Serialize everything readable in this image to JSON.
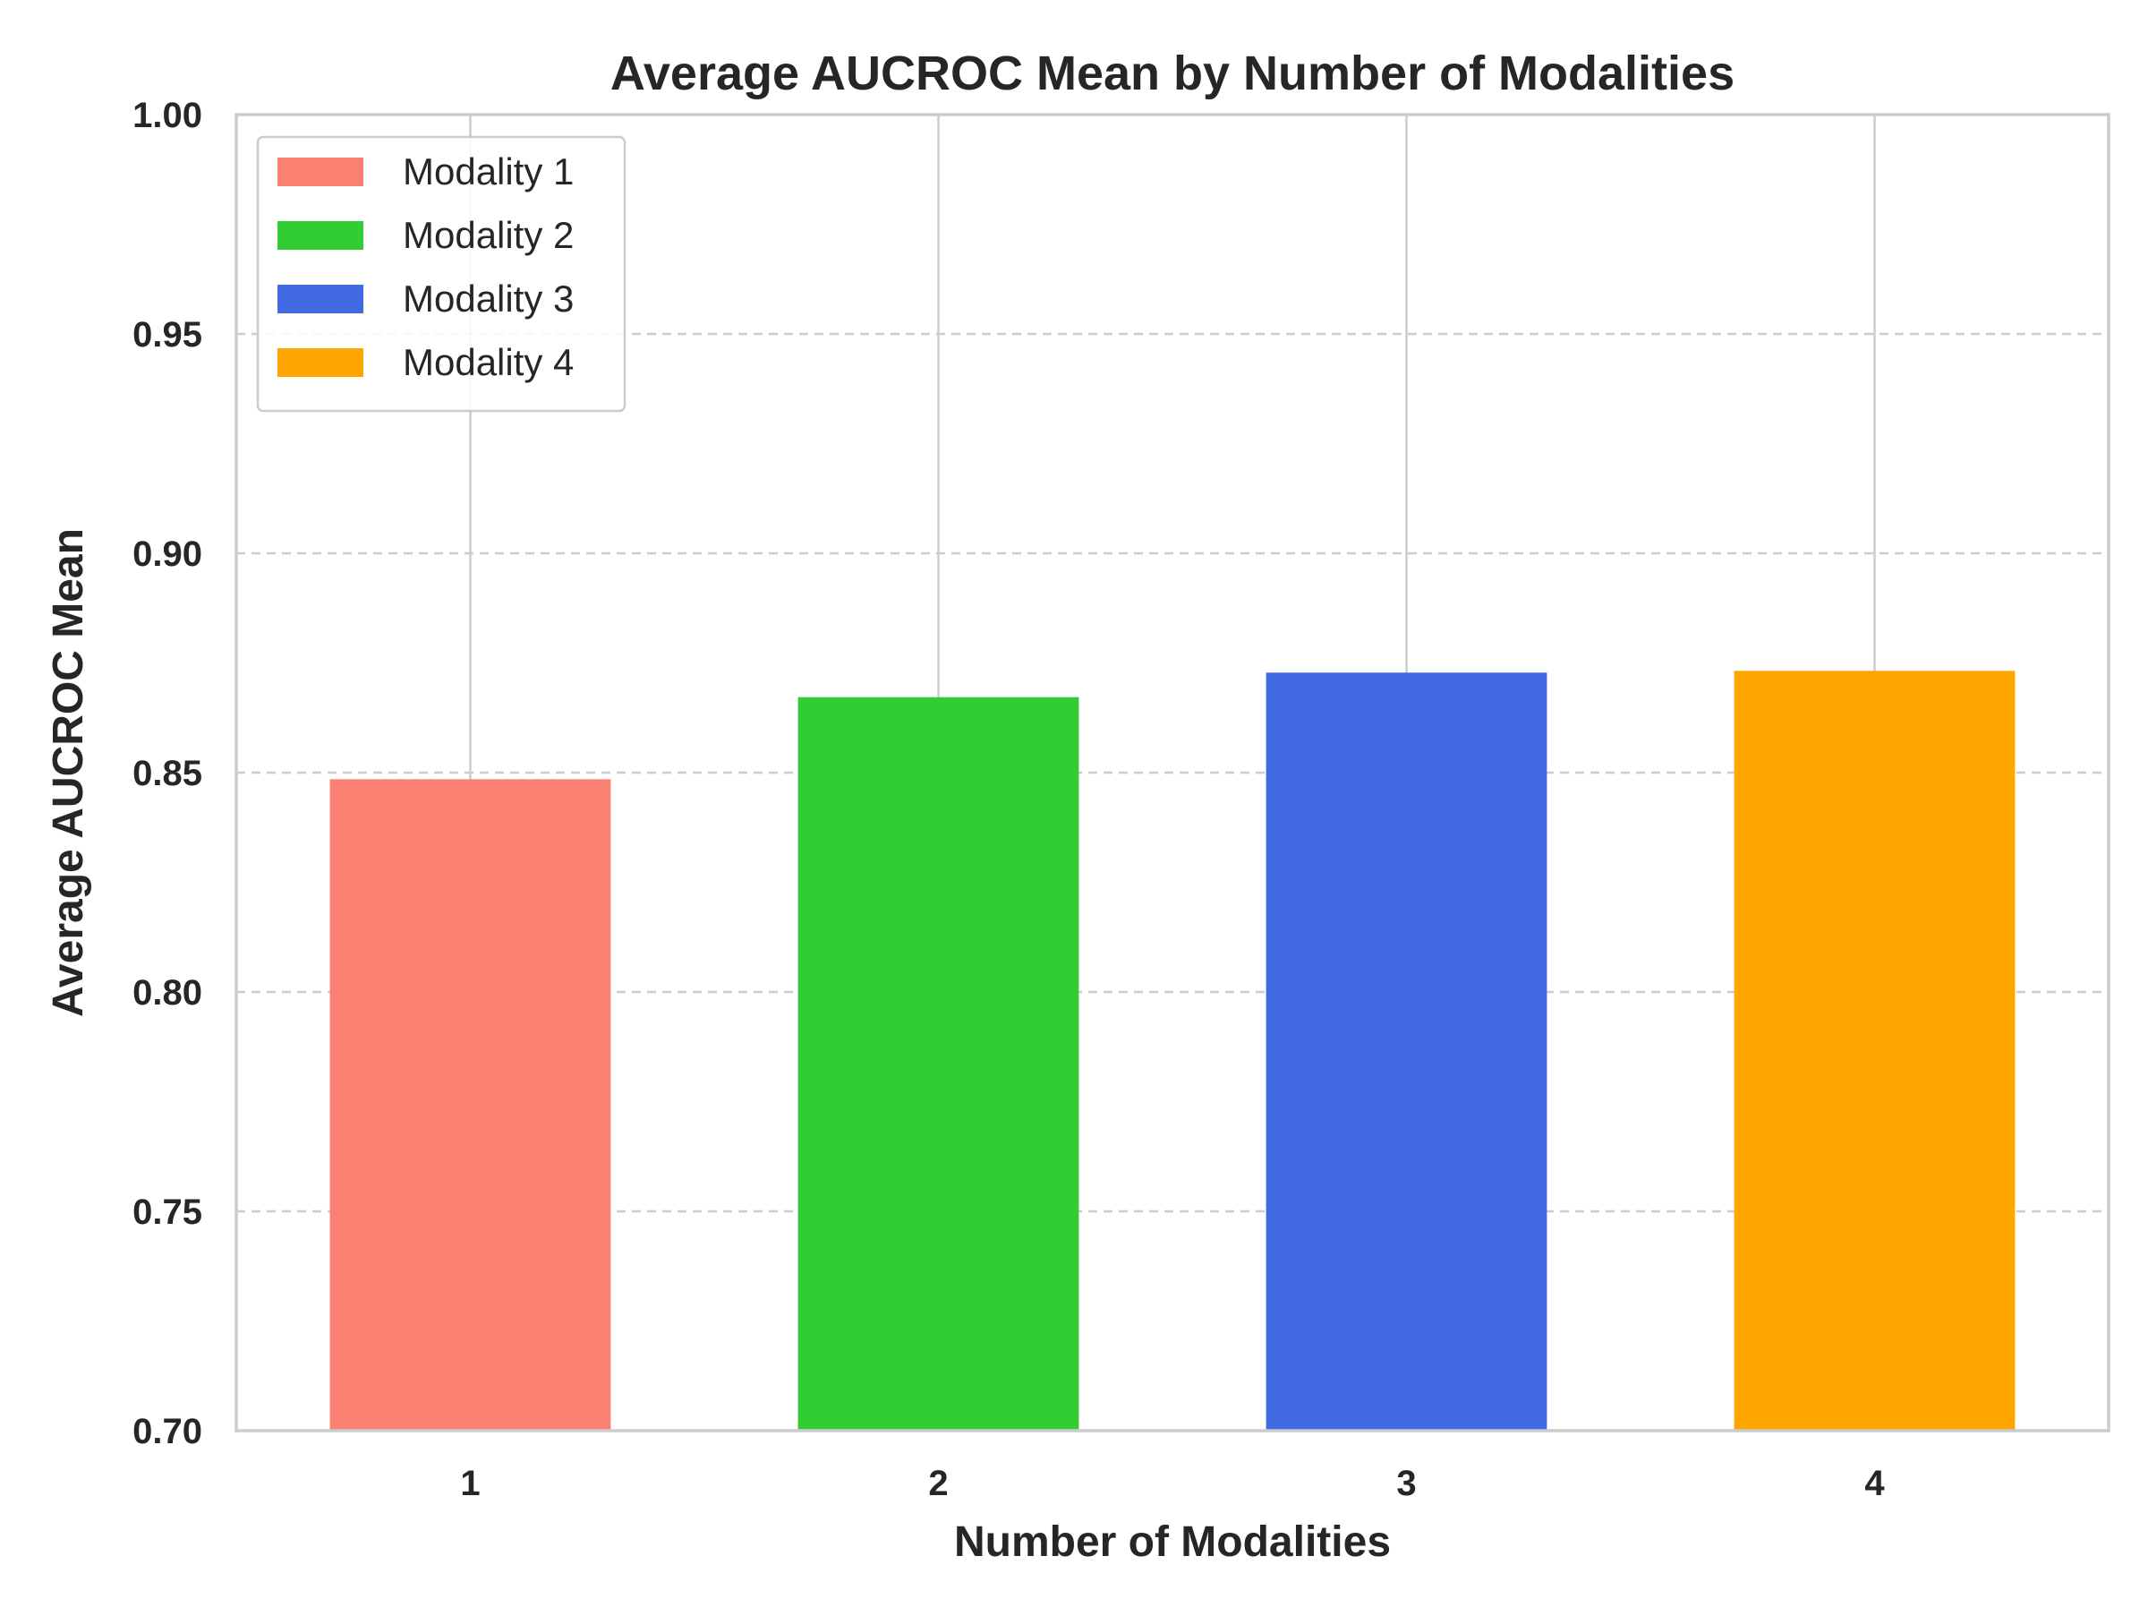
{
  "chart_data": {
    "type": "bar",
    "title": "Average AUCROC Mean by Number of Modalities",
    "xlabel": "Number of Modalities",
    "ylabel": "Average AUCROC Mean",
    "categories": [
      "1",
      "2",
      "3",
      "4"
    ],
    "values": [
      0.8485,
      0.8672,
      0.8728,
      0.8732
    ],
    "colors": [
      "#fa8072",
      "#32cd32",
      "#4169e1",
      "#ffa500"
    ],
    "ylim": [
      0.7,
      1.0
    ],
    "yticks": [
      "0.70",
      "0.75",
      "0.80",
      "0.85",
      "0.90",
      "0.95",
      "1.00"
    ],
    "grid": true,
    "legend": {
      "placement": "top-left",
      "entries": [
        "Modality 1",
        "Modality 2",
        "Modality 3",
        "Modality 4"
      ]
    }
  }
}
